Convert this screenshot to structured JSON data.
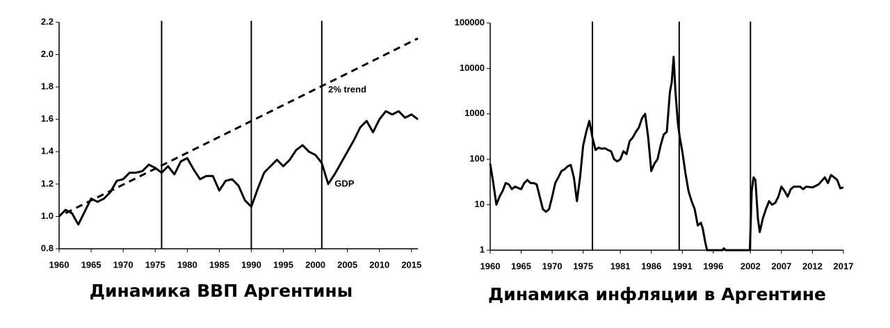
{
  "chart_data": [
    {
      "type": "line",
      "title": "Динамика ВВП Аргентины",
      "xlim": [
        1960,
        2016
      ],
      "xticks": [
        1960,
        1965,
        1970,
        1975,
        1980,
        1985,
        1990,
        1995,
        2000,
        2005,
        2010,
        2015
      ],
      "ylim": [
        0.8,
        2.2
      ],
      "yticks": [
        0.8,
        {
          "value": 1,
          "label": "1.0"
        },
        1.2,
        1.4,
        1.6,
        1.8,
        {
          "value": 2,
          "label": "2.0"
        },
        2.2
      ],
      "vlines": [
        1976,
        1990,
        2001
      ],
      "series": [
        {
          "name": "GDP",
          "color": "#000000",
          "dashed": false,
          "x": [
            1960,
            1961,
            1962,
            1963,
            1964,
            1965,
            1966,
            1967,
            1968,
            1969,
            1970,
            1971,
            1972,
            1973,
            1974,
            1975,
            1976,
            1977,
            1978,
            1979,
            1980,
            1981,
            1982,
            1983,
            1984,
            1985,
            1986,
            1987,
            1988,
            1989,
            1990,
            1991,
            1992,
            1993,
            1994,
            1995,
            1996,
            1997,
            1998,
            1999,
            2000,
            2001,
            2002,
            2003,
            2004,
            2005,
            2006,
            2007,
            2008,
            2009,
            2010,
            2011,
            2012,
            2013,
            2014,
            2015,
            2016
          ],
          "values": [
            1.0,
            1.04,
            1.02,
            0.95,
            1.03,
            1.11,
            1.09,
            1.11,
            1.15,
            1.22,
            1.23,
            1.27,
            1.27,
            1.28,
            1.32,
            1.3,
            1.27,
            1.31,
            1.26,
            1.34,
            1.36,
            1.29,
            1.23,
            1.25,
            1.25,
            1.16,
            1.22,
            1.23,
            1.19,
            1.1,
            1.06,
            1.17,
            1.27,
            1.31,
            1.35,
            1.31,
            1.35,
            1.41,
            1.44,
            1.4,
            1.38,
            1.33,
            1.2,
            1.26,
            1.33,
            1.4,
            1.47,
            1.55,
            1.59,
            1.52,
            1.6,
            1.65,
            1.63,
            1.65,
            1.61,
            1.63,
            1.6
          ]
        },
        {
          "name": "2% trend",
          "color": "#000000",
          "dashed": true,
          "x": [
            1961,
            2016
          ],
          "values": [
            1.02,
            2.1
          ]
        }
      ],
      "annotations": [
        {
          "text": "2% trend",
          "x": 2002,
          "y": 1.78
        },
        {
          "text": "GDP",
          "x": 2003,
          "y": 1.2
        }
      ]
    },
    {
      "type": "line",
      "title": "Динамика инфляции в Аргентине",
      "log_scale": true,
      "xlim": [
        1960,
        2017
      ],
      "xticks": [
        1960,
        1965,
        1970,
        1975,
        1981,
        1986,
        1991,
        1996,
        2002,
        2007,
        2012,
        2017
      ],
      "ylim": [
        1,
        100000
      ],
      "yticks": [
        1,
        10,
        100,
        1000,
        10000,
        100000
      ],
      "vlines": [
        1976.5,
        1990.5,
        2002
      ],
      "series": [
        {
          "name": "Inflation",
          "color": "#000000",
          "dashed": false,
          "x": [
            1960,
            1960.5,
            1961,
            1961.5,
            1962,
            1962.5,
            1963,
            1963.5,
            1964,
            1965,
            1965.5,
            1966,
            1966.5,
            1967,
            1967.5,
            1968,
            1968.5,
            1969,
            1969.5,
            1970,
            1970.5,
            1971,
            1971.5,
            1972,
            1972.5,
            1973,
            1973.5,
            1974,
            1974.5,
            1975,
            1975.5,
            1976,
            1976.5,
            1977,
            1977.5,
            1978,
            1978.5,
            1979,
            1979.5,
            1980,
            1980.5,
            1981,
            1981.5,
            1982,
            1982.5,
            1983,
            1983.5,
            1984,
            1984.5,
            1985,
            1985.5,
            1986,
            1986.5,
            1987,
            1987.5,
            1988,
            1988.5,
            1989,
            1989.3,
            1989.6,
            1989.9,
            1990.3,
            1990.6,
            1991,
            1991.5,
            1992,
            1992.5,
            1993,
            1993.5,
            1994,
            1994.3,
            1994.7,
            1995,
            1997.5,
            1997.7,
            1998,
            2001.9,
            2002.2,
            2002.5,
            2002.8,
            2003.2,
            2003.5,
            2004,
            2004.5,
            2005,
            2005.5,
            2006,
            2006.5,
            2007,
            2007.5,
            2008,
            2008.5,
            2009,
            2010,
            2010.5,
            2011,
            2012,
            2013,
            2014,
            2014.5,
            2015,
            2015.5,
            2016,
            2016.5,
            2017
          ],
          "values": [
            80,
            30,
            10,
            15,
            20,
            30,
            28,
            22,
            25,
            22,
            30,
            35,
            30,
            30,
            28,
            15,
            8,
            7,
            8,
            15,
            30,
            40,
            55,
            60,
            70,
            75,
            40,
            12,
            40,
            200,
            400,
            700,
            300,
            160,
            180,
            170,
            175,
            160,
            150,
            100,
            90,
            100,
            150,
            130,
            250,
            300,
            400,
            500,
            800,
            1000,
            300,
            55,
            80,
            100,
            200,
            350,
            400,
            3000,
            5000,
            18000,
            3000,
            600,
            300,
            150,
            50,
            20,
            12,
            8,
            3.5,
            4,
            3,
            1.5,
            1,
            1,
            1.1,
            1,
            1,
            20,
            40,
            35,
            5,
            2.5,
            5,
            8,
            12,
            10,
            11,
            15,
            25,
            20,
            15,
            22,
            25,
            25,
            22,
            25,
            24,
            28,
            40,
            30,
            45,
            40,
            35,
            23,
            24
          ]
        }
      ]
    }
  ]
}
